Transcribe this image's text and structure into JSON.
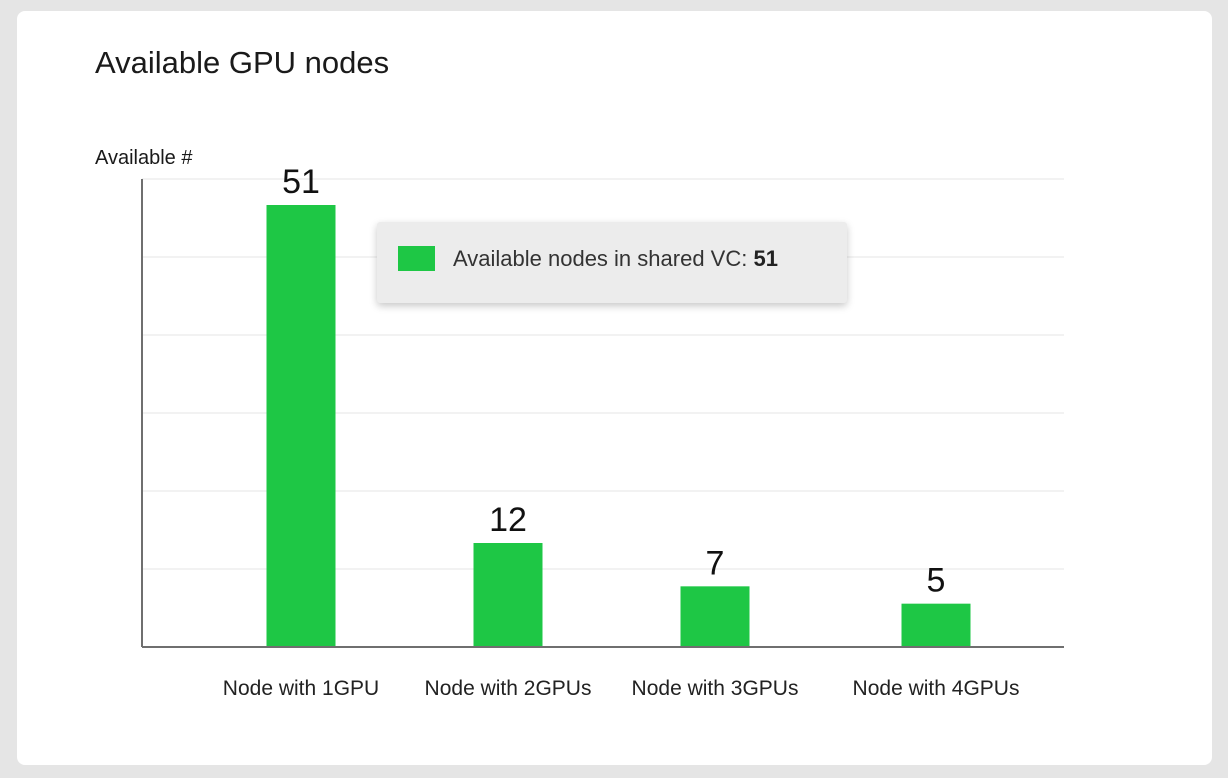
{
  "card": {
    "title": "Available GPU nodes"
  },
  "colors": {
    "bar": "#1ec745",
    "grid": "#e6e6e6",
    "axis": "#6f6f6f"
  },
  "chart_data": {
    "type": "bar",
    "title": "Available GPU nodes",
    "ylabel": "Available #",
    "xlabel": "",
    "categories": [
      "Node with 1GPU",
      "Node with 2GPUs",
      "Node with 3GPUs",
      "Node with 4GPUs"
    ],
    "series": [
      {
        "name": "Available nodes in shared VC",
        "values": [
          51,
          12,
          7,
          5
        ]
      }
    ],
    "ylim": [
      0,
      54
    ],
    "grid": true,
    "legend": "none"
  },
  "tooltip": {
    "label": "Available nodes in shared VC: ",
    "value": "51"
  }
}
